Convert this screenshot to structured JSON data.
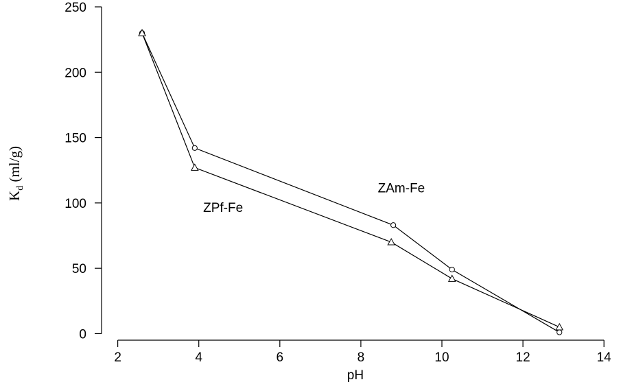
{
  "chart_data": {
    "type": "line",
    "xlabel": "pH",
    "ylabel": "K",
    "ylabel_subscript": "d",
    "ylabel_units": " (ml/g)",
    "xlim": [
      1.6,
      14.2
    ],
    "ylim": [
      -5,
      250
    ],
    "x_ticks": [
      2,
      4,
      6,
      8,
      10,
      12,
      14
    ],
    "y_ticks": [
      0,
      50,
      100,
      150,
      200,
      250
    ],
    "grid": false,
    "series": [
      {
        "name": "ZAm-Fe",
        "marker": "circle",
        "x": [
          2.6,
          3.9,
          8.8,
          10.25,
          12.9
        ],
        "y": [
          230,
          142,
          83,
          49,
          1
        ]
      },
      {
        "name": "ZPf-Fe",
        "marker": "triangle",
        "x": [
          2.6,
          3.9,
          8.75,
          10.25,
          12.9
        ],
        "y": [
          230,
          127,
          70,
          42,
          5
        ]
      }
    ],
    "annotations": [
      {
        "text": "ZAm-Fe",
        "x": 9.0,
        "y": 108
      },
      {
        "text": "ZPf-Fe",
        "x": 4.6,
        "y": 93
      }
    ]
  }
}
